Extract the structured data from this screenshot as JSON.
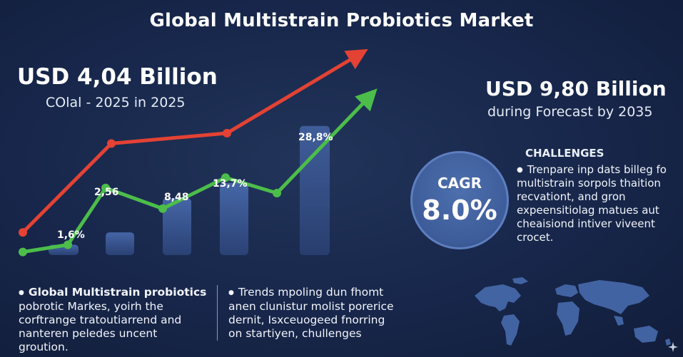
{
  "title": "Global Multistrain Probiotics Market",
  "kpi_left": {
    "value": "USD 4,04 Billion",
    "subtitle": "COlal - 2025 in 2025"
  },
  "kpi_right": {
    "value": "USD 9,80 Billion",
    "subtitle": "during Forecast by 2035"
  },
  "cagr": {
    "label": "CAGR",
    "value": "8.0%"
  },
  "challenges": {
    "heading": "CHALLENGES",
    "lines": [
      "Trenpare inp dats billeg fo",
      "multistrain sorpols thaition",
      "recvationt,  and gron",
      "expeensitiolag matues aut",
      "cheaisiond  intiver viveent",
      "crocet."
    ]
  },
  "bottom_left": {
    "lines": [
      "Global Multistrain probiotics",
      "pobrotic Markes, yoirh the",
      "corftrange tratoutiarrend and",
      "nanteren peledes uncent",
      "groution."
    ]
  },
  "bottom_mid": {
    "lines": [
      "Trends mpoling dun fhomt",
      "anen clunistur molist porerice",
      "dernit, Isxceuogeed fnorring",
      "on startiyen, chullenges"
    ]
  },
  "colors": {
    "background": "#17264a",
    "red_line": "#e34234",
    "green_line": "#4cbd4a",
    "bar": "#3f5e9c",
    "cagr_circle": "#4466a6"
  },
  "chart_data": {
    "type": "bar",
    "bars": {
      "values": [
        1.0,
        2.2,
        5.5,
        7.0,
        12.5
      ]
    },
    "series": [
      {
        "values": [
          2.2,
          10.8,
          11.8,
          11.8,
          19.5
        ]
      },
      {
        "values": [
          0.3,
          1.0,
          6.5,
          4.5,
          7.5,
          6.0,
          15.5
        ]
      }
    ],
    "data_labels": [
      "1,6%",
      "2,56",
      "8,48",
      "13,7%",
      "28,8%"
    ],
    "ylim": [
      0,
      22
    ],
    "grid": false,
    "arrows": true
  }
}
